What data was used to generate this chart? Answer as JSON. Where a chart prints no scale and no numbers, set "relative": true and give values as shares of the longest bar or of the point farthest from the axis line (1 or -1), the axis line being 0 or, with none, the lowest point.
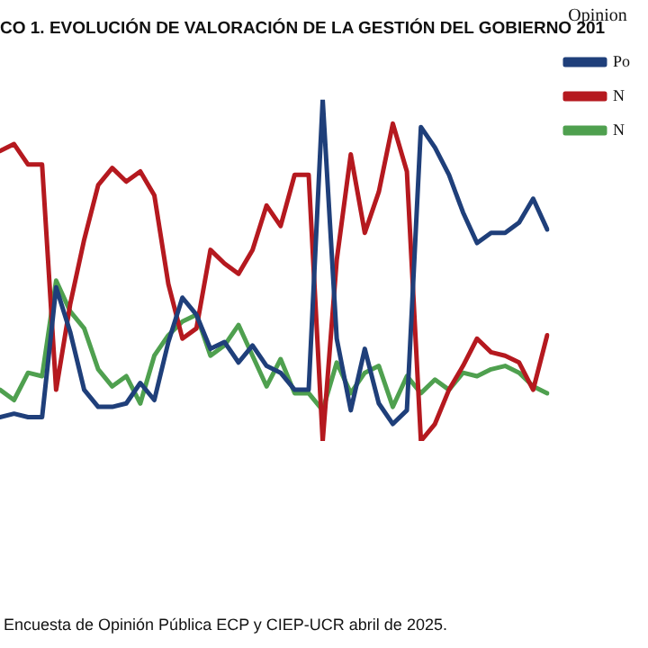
{
  "chart_data": {
    "type": "line",
    "title": "CO 1. EVOLUCIÓN DE VALORACIÓN DE LA GESTIÓN DEL GOBIERNO 201",
    "legend_title": "Opinion",
    "relative": true,
    "legend": "top right",
    "marker": "none",
    "line_style": "solid",
    "categories": [
      null,
      null,
      null,
      null,
      null,
      null,
      null,
      null,
      null,
      null,
      null,
      null,
      null,
      null,
      null,
      null,
      null,
      null,
      null,
      null,
      null,
      null,
      null,
      null,
      null,
      null,
      null,
      null,
      null,
      null,
      null,
      null,
      null,
      null,
      null,
      null,
      null,
      null,
      null,
      null
    ],
    "series": [
      {
        "name": "Po",
        "color": "#1f3f7a",
        "values": [
          0.07,
          0.08,
          0.07,
          0.07,
          0.45,
          0.32,
          0.15,
          0.1,
          0.1,
          0.11,
          0.17,
          0.12,
          0.29,
          0.42,
          0.37,
          0.27,
          0.29,
          0.23,
          0.28,
          0.22,
          0.2,
          0.15,
          0.15,
          1,
          0.3,
          0.09,
          0.27,
          0.11,
          0.05,
          0.09,
          0.92,
          0.86,
          0.78,
          0.67,
          0.58,
          0.61,
          0.61,
          0.64,
          0.71,
          0.62
        ]
      },
      {
        "name": "N",
        "color": "#b5191f",
        "values": [
          0.85,
          0.87,
          0.81,
          0.81,
          0.15,
          0.4,
          0.59,
          0.75,
          0.8,
          0.76,
          0.79,
          0.72,
          0.46,
          0.3,
          0.33,
          0.56,
          0.52,
          0.49,
          0.56,
          0.69,
          0.63,
          0.78,
          0.78,
          0,
          0.53,
          0.84,
          0.61,
          0.73,
          0.93,
          0.79,
          0,
          0.05,
          0.15,
          0.22,
          0.3,
          0.26,
          0.25,
          0.23,
          0.15,
          0.31
        ]
      },
      {
        "name": "N",
        "color": "#4fa04f",
        "values": [
          0.15,
          0.12,
          0.2,
          0.19,
          0.47,
          0.38,
          0.33,
          0.21,
          0.16,
          0.19,
          0.11,
          0.25,
          0.31,
          0.35,
          0.37,
          0.25,
          0.28,
          0.34,
          0.25,
          0.16,
          0.24,
          0.14,
          0.14,
          0.09,
          0.23,
          0.14,
          0.2,
          0.22,
          0.1,
          0.19,
          0.14,
          0.18,
          0.15,
          0.2,
          0.19,
          0.21,
          0.22,
          0.2,
          0.16,
          0.14
        ]
      }
    ],
    "annotations": [
      "Encuesta de Opinión Pública ECP y CIEP-UCR abril de 2025."
    ]
  }
}
